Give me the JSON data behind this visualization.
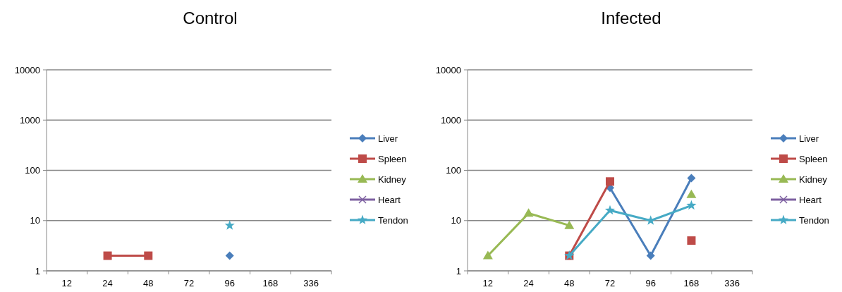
{
  "chart_data": [
    {
      "type": "line",
      "title": "Control",
      "categories": [
        "12",
        "24",
        "48",
        "72",
        "96",
        "168",
        "336"
      ],
      "log": "y",
      "ylim": [
        1,
        10000
      ],
      "yticks": [
        1,
        10,
        100,
        1000,
        10000
      ],
      "grid": "y",
      "legend": "right",
      "series": [
        {
          "name": "Liver",
          "color": "#4a7ebb",
          "marker": "diamond",
          "values": [
            null,
            null,
            null,
            null,
            2,
            null,
            null
          ]
        },
        {
          "name": "Spleen",
          "color": "#be4b48",
          "marker": "square",
          "values": [
            null,
            2,
            2,
            null,
            null,
            null,
            null
          ]
        },
        {
          "name": "Kidney",
          "color": "#98b954",
          "marker": "triangle",
          "values": [
            null,
            null,
            null,
            null,
            null,
            null,
            null
          ]
        },
        {
          "name": "Heart",
          "color": "#7d60a0",
          "marker": "cross",
          "values": [
            null,
            null,
            null,
            null,
            null,
            null,
            null
          ]
        },
        {
          "name": "Tendon",
          "color": "#46aac5",
          "marker": "star",
          "values": [
            null,
            null,
            null,
            null,
            8,
            null,
            null
          ]
        }
      ]
    },
    {
      "type": "line",
      "title": "Infected",
      "categories": [
        "12",
        "24",
        "48",
        "72",
        "96",
        "168",
        "336"
      ],
      "log": "y",
      "ylim": [
        1,
        10000
      ],
      "yticks": [
        1,
        10,
        100,
        1000,
        10000
      ],
      "grid": "y",
      "legend": "right",
      "series": [
        {
          "name": "Liver",
          "color": "#4a7ebb",
          "marker": "diamond",
          "values": [
            null,
            null,
            null,
            45,
            2,
            70,
            null
          ]
        },
        {
          "name": "Spleen",
          "color": "#be4b48",
          "marker": "square",
          "values": [
            null,
            null,
            2,
            60,
            null,
            4,
            null
          ]
        },
        {
          "name": "Kidney",
          "color": "#98b954",
          "marker": "triangle",
          "values": [
            2,
            14,
            8,
            null,
            null,
            33,
            null
          ]
        },
        {
          "name": "Heart",
          "color": "#7d60a0",
          "marker": "cross",
          "values": [
            null,
            null,
            null,
            null,
            null,
            null,
            null
          ]
        },
        {
          "name": "Tendon",
          "color": "#46aac5",
          "marker": "star",
          "values": [
            null,
            null,
            2,
            16,
            10,
            20,
            null
          ]
        }
      ]
    }
  ]
}
